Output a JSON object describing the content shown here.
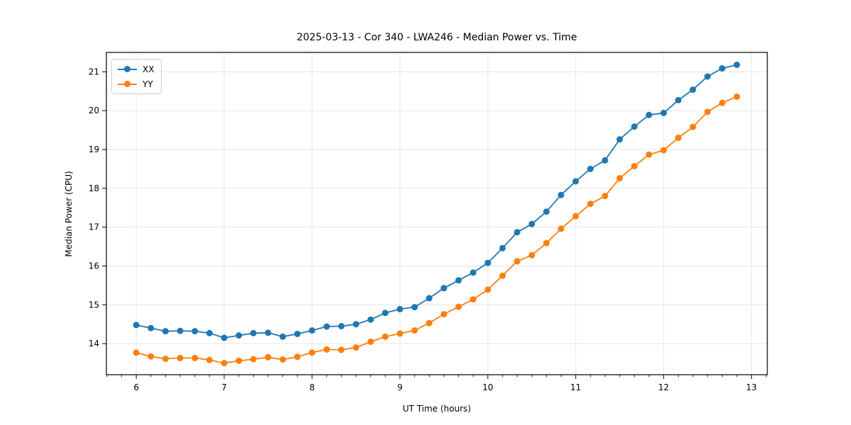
{
  "chart_data": {
    "type": "line",
    "title": "2025-03-13 - Cor 340 - LWA246 - Median Power vs. Time",
    "xlabel": "UT Time (hours)",
    "ylabel": "Median Power (CPU)",
    "xlim": [
      5.66,
      13.18
    ],
    "ylim": [
      13.2,
      21.5
    ],
    "xticks": [
      6,
      7,
      8,
      9,
      10,
      11,
      12,
      13
    ],
    "yticks": [
      14,
      15,
      16,
      17,
      18,
      19,
      20,
      21
    ],
    "x_minor_tick_step": 0.16667,
    "grid": true,
    "legend_position": "upper left",
    "marker": "circle",
    "x": [
      6.0,
      6.167,
      6.333,
      6.5,
      6.667,
      6.833,
      7.0,
      7.167,
      7.333,
      7.5,
      7.667,
      7.833,
      8.0,
      8.167,
      8.333,
      8.5,
      8.667,
      8.833,
      9.0,
      9.167,
      9.333,
      9.5,
      9.667,
      9.833,
      10.0,
      10.167,
      10.333,
      10.5,
      10.667,
      10.833,
      11.0,
      11.167,
      11.333,
      11.5,
      11.667,
      11.833,
      12.0,
      12.167,
      12.333,
      12.5,
      12.667,
      12.833
    ],
    "series": [
      {
        "name": "XX",
        "color": "#1f77b4",
        "values": [
          14.48,
          14.4,
          14.32,
          14.33,
          14.32,
          14.27,
          14.15,
          14.21,
          14.27,
          14.28,
          14.18,
          14.25,
          14.34,
          14.44,
          14.45,
          14.5,
          14.62,
          14.79,
          14.89,
          14.94,
          15.17,
          15.43,
          15.63,
          15.83,
          16.08,
          16.46,
          16.87,
          17.08,
          17.4,
          17.83,
          18.18,
          18.5,
          18.72,
          19.26,
          19.59,
          19.89,
          19.94,
          20.27,
          20.54,
          20.88,
          21.09,
          21.18
        ]
      },
      {
        "name": "YY",
        "color": "#ff7f0e",
        "values": [
          13.77,
          13.67,
          13.61,
          13.63,
          13.63,
          13.58,
          13.5,
          13.56,
          13.6,
          13.65,
          13.59,
          13.66,
          13.77,
          13.85,
          13.84,
          13.9,
          14.05,
          14.18,
          14.26,
          14.34,
          14.53,
          14.76,
          14.95,
          15.14,
          15.39,
          15.75,
          16.12,
          16.28,
          16.59,
          16.96,
          17.28,
          17.6,
          17.8,
          18.26,
          18.57,
          18.87,
          18.98,
          19.3,
          19.58,
          19.97,
          20.2,
          20.36
        ]
      }
    ]
  },
  "colors": {
    "grid": "#e5e5e5",
    "spine": "#000000",
    "background": "#ffffff"
  }
}
